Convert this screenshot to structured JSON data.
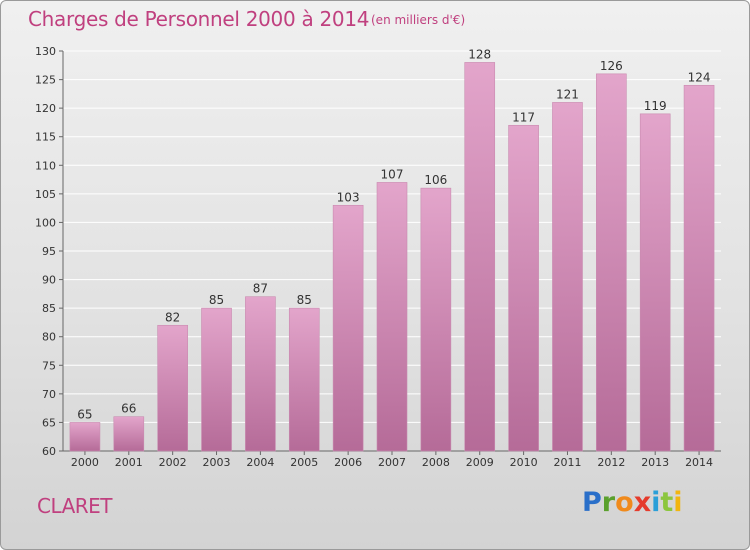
{
  "title": "Charges de Personnel 2000 à 2014",
  "subtitle": "(en milliers d'€)",
  "commune": "CLARET",
  "logo": {
    "letters": [
      "P",
      "r",
      "o",
      "x",
      "i",
      "t",
      "i"
    ],
    "colors": [
      "#2a6fc9",
      "#5aa02c",
      "#f08a1c",
      "#e53b2c",
      "#2a9fd8",
      "#8cc63e",
      "#f2b50f"
    ]
  },
  "colors": {
    "accent": "#c0407f",
    "bar_top": "#e3a5cb",
    "bar_bottom": "#b56b98"
  },
  "chart_data": {
    "type": "bar",
    "title": "Charges de Personnel 2000 à 2014",
    "subtitle": "(en milliers d'€)",
    "xlabel": "",
    "ylabel": "",
    "categories": [
      "2000",
      "2001",
      "2002",
      "2003",
      "2004",
      "2005",
      "2006",
      "2007",
      "2008",
      "2009",
      "2010",
      "2011",
      "2012",
      "2013",
      "2014"
    ],
    "values": [
      65,
      66,
      82,
      85,
      87,
      85,
      103,
      107,
      106,
      128,
      117,
      121,
      126,
      119,
      124
    ],
    "ylim": [
      60,
      130
    ],
    "yticks": [
      60,
      65,
      70,
      75,
      80,
      85,
      90,
      95,
      100,
      105,
      110,
      115,
      120,
      125,
      130
    ],
    "grid": true,
    "data_labels": true
  }
}
